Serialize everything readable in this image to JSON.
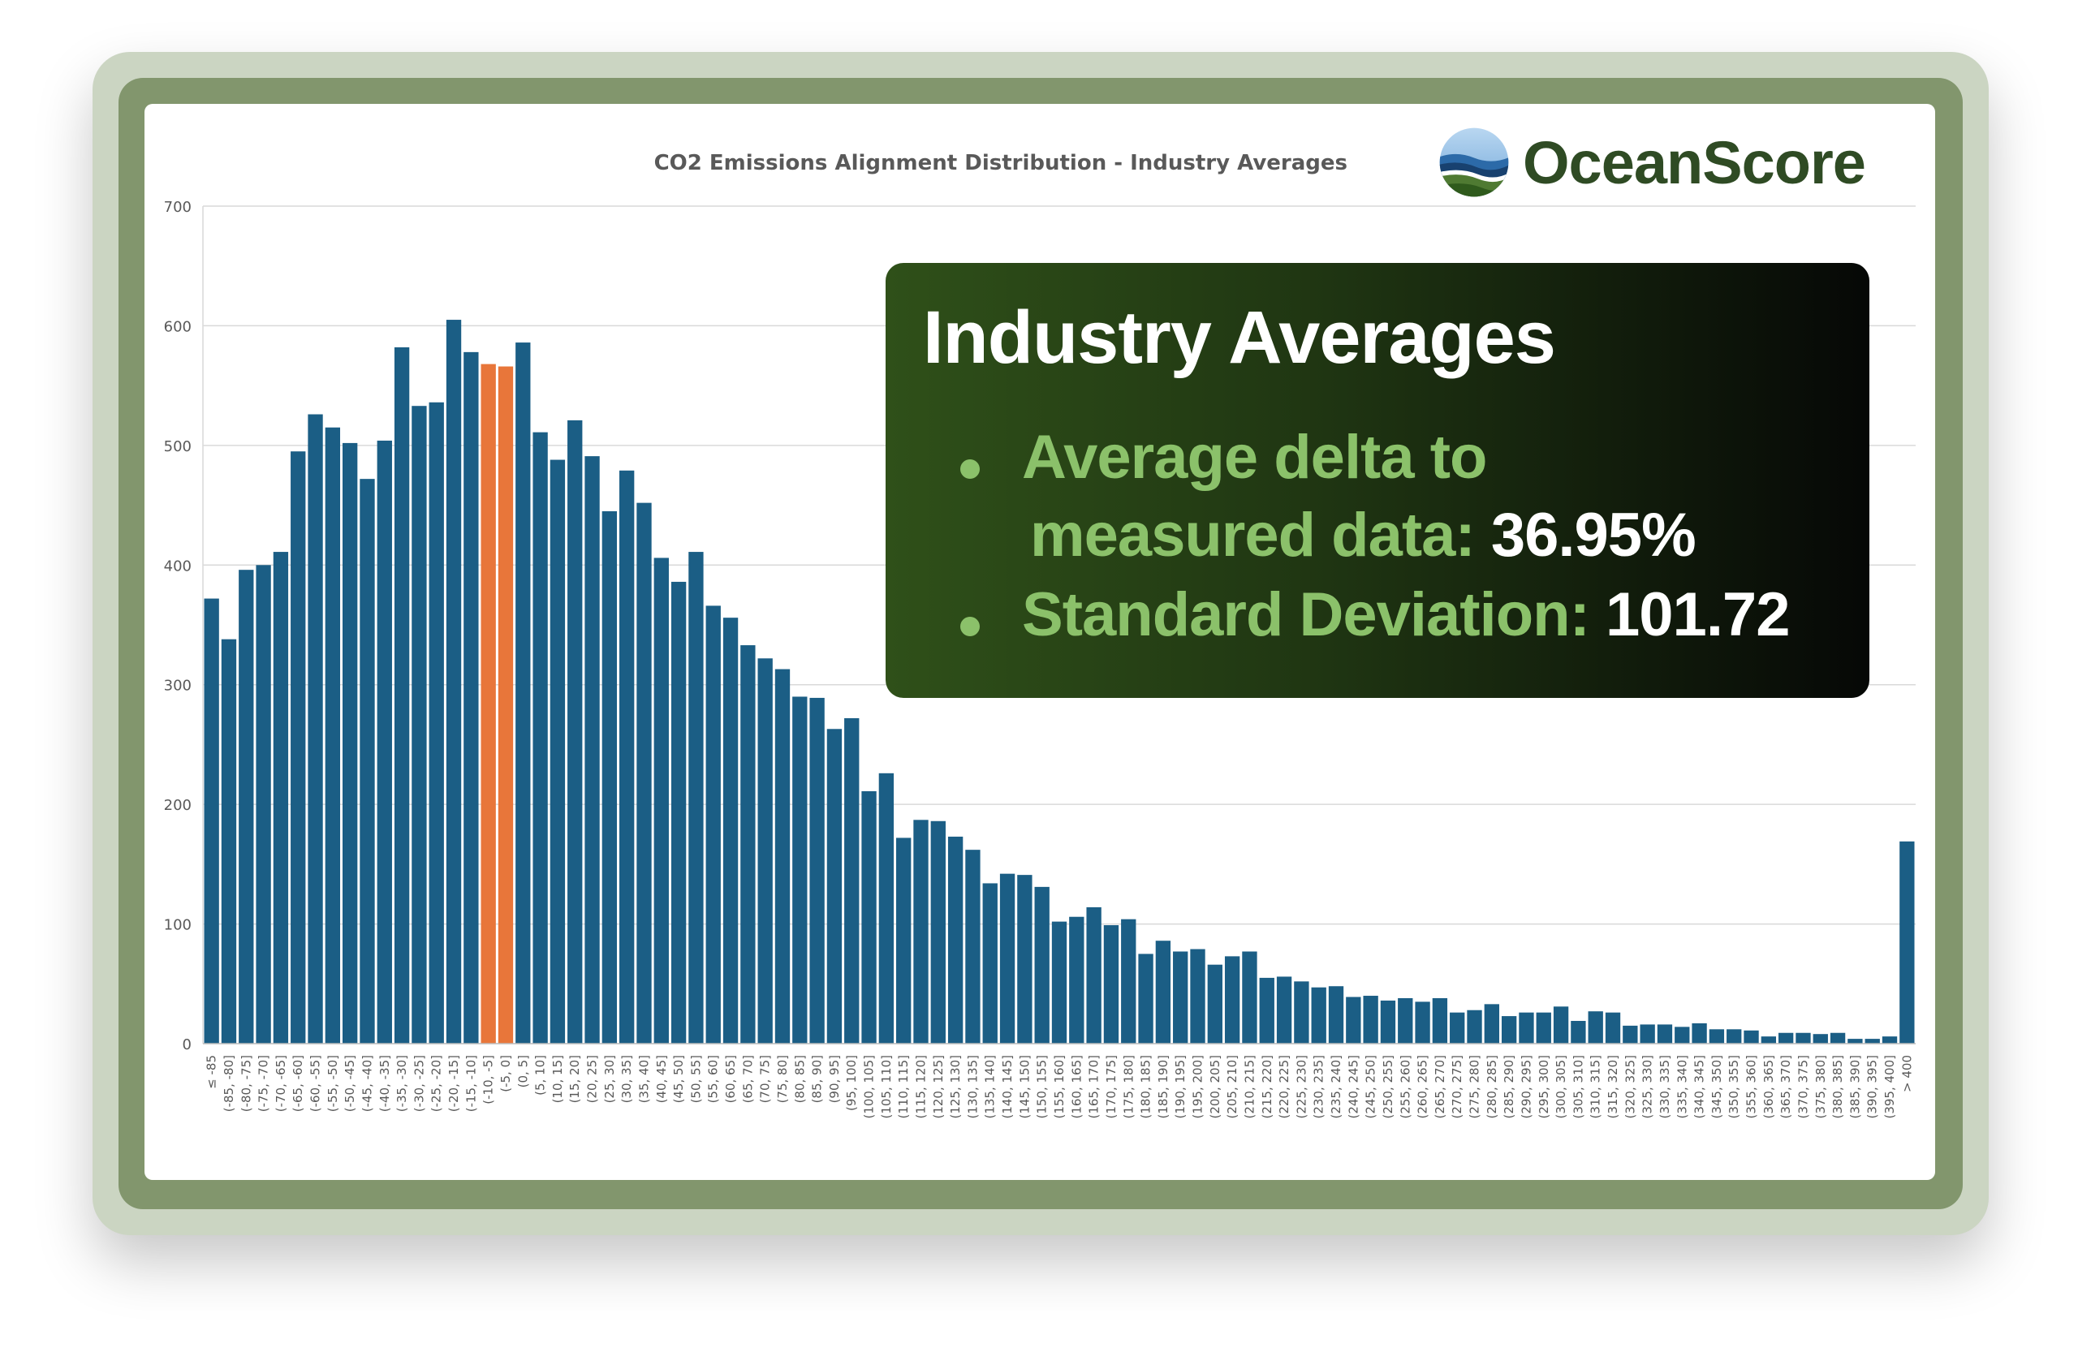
{
  "chart_data": {
    "type": "bar",
    "title": "CO2 Emissions Alignment Distribution - Industry Averages",
    "xlabel": "",
    "ylabel": "",
    "ylim": [
      0,
      700
    ],
    "yticks": [
      0,
      100,
      200,
      300,
      400,
      500,
      600,
      700
    ],
    "grid": true,
    "bar_color": "#1b5e85",
    "highlight_color": "#e8763a",
    "highlight_categories": [
      "(-10, -5]",
      "(-5, 0]"
    ],
    "categories": [
      "≤ -85",
      "(-85, -80]",
      "(-80, -75]",
      "(-75, -70]",
      "(-70, -65]",
      "(-65, -60]",
      "(-60, -55]",
      "(-55, -50]",
      "(-50, -45]",
      "(-45, -40]",
      "(-40, -35]",
      "(-35, -30]",
      "(-30, -25]",
      "(-25, -20]",
      "(-20, -15]",
      "(-15, -10]",
      "(-10, -5]",
      "(-5, 0]",
      "(0, 5]",
      "(5, 10]",
      "(10, 15]",
      "(15, 20]",
      "(20, 25]",
      "(25, 30]",
      "(30, 35]",
      "(35, 40]",
      "(40, 45]",
      "(45, 50]",
      "(50, 55]",
      "(55, 60]",
      "(60, 65]",
      "(65, 70]",
      "(70, 75]",
      "(75, 80]",
      "(80, 85]",
      "(85, 90]",
      "(90, 95]",
      "(95, 100]",
      "(100, 105]",
      "(105, 110]",
      "(110, 115]",
      "(115, 120]",
      "(120, 125]",
      "(125, 130]",
      "(130, 135]",
      "(135, 140]",
      "(140, 145]",
      "(145, 150]",
      "(150, 155]",
      "(155, 160]",
      "(160, 165]",
      "(165, 170]",
      "(170, 175]",
      "(175, 180]",
      "(180, 185]",
      "(185, 190]",
      "(190, 195]",
      "(195, 200]",
      "(200, 205]",
      "(205, 210]",
      "(210, 215]",
      "(215, 220]",
      "(220, 225]",
      "(225, 230]",
      "(230, 235]",
      "(235, 240]",
      "(240, 245]",
      "(245, 250]",
      "(250, 255]",
      "(255, 260]",
      "(260, 265]",
      "(265, 270]",
      "(270, 275]",
      "(275, 280]",
      "(280, 285]",
      "(285, 290]",
      "(290, 295]",
      "(295, 300]",
      "(300, 305]",
      "(305, 310]",
      "(310, 315]",
      "(315, 320]",
      "(320, 325]",
      "(325, 330]",
      "(330, 335]",
      "(335, 340]",
      "(340, 345]",
      "(345, 350]",
      "(350, 355]",
      "(355, 360]",
      "(360, 365]",
      "(365, 370]",
      "(370, 375]",
      "(375, 380]",
      "(380, 385]",
      "(385, 390]",
      "(390, 395]",
      "(395, 400]",
      "> 400"
    ],
    "values": [
      372,
      338,
      396,
      400,
      411,
      495,
      526,
      515,
      502,
      472,
      504,
      582,
      533,
      536,
      605,
      578,
      568,
      566,
      586,
      511,
      488,
      521,
      491,
      445,
      479,
      452,
      406,
      386,
      411,
      366,
      356,
      333,
      322,
      313,
      290,
      289,
      263,
      272,
      211,
      226,
      172,
      187,
      186,
      173,
      162,
      134,
      142,
      141,
      131,
      102,
      106,
      114,
      99,
      104,
      75,
      86,
      77,
      79,
      66,
      73,
      77,
      55,
      56,
      52,
      47,
      48,
      39,
      40,
      36,
      38,
      35,
      38,
      26,
      28,
      33,
      23,
      26,
      26,
      31,
      19,
      27,
      26,
      15,
      16,
      16,
      14,
      17,
      12,
      12,
      11,
      6,
      9,
      9,
      8,
      9,
      4,
      4,
      6,
      169
    ]
  },
  "brand": {
    "name": "OceanScore",
    "colors": {
      "text": "#2f4b24",
      "sky": "#7fb3e0",
      "sea": "#1e4f86",
      "land": "#4f7a32"
    }
  },
  "info_box": {
    "title": "Industry Averages",
    "bullets": [
      {
        "lines": [
          "Average delta to",
          "measured data:"
        ],
        "value": "36.95%"
      },
      {
        "lines": [
          "Standard Deviation:"
        ],
        "value": "101.72"
      }
    ]
  }
}
